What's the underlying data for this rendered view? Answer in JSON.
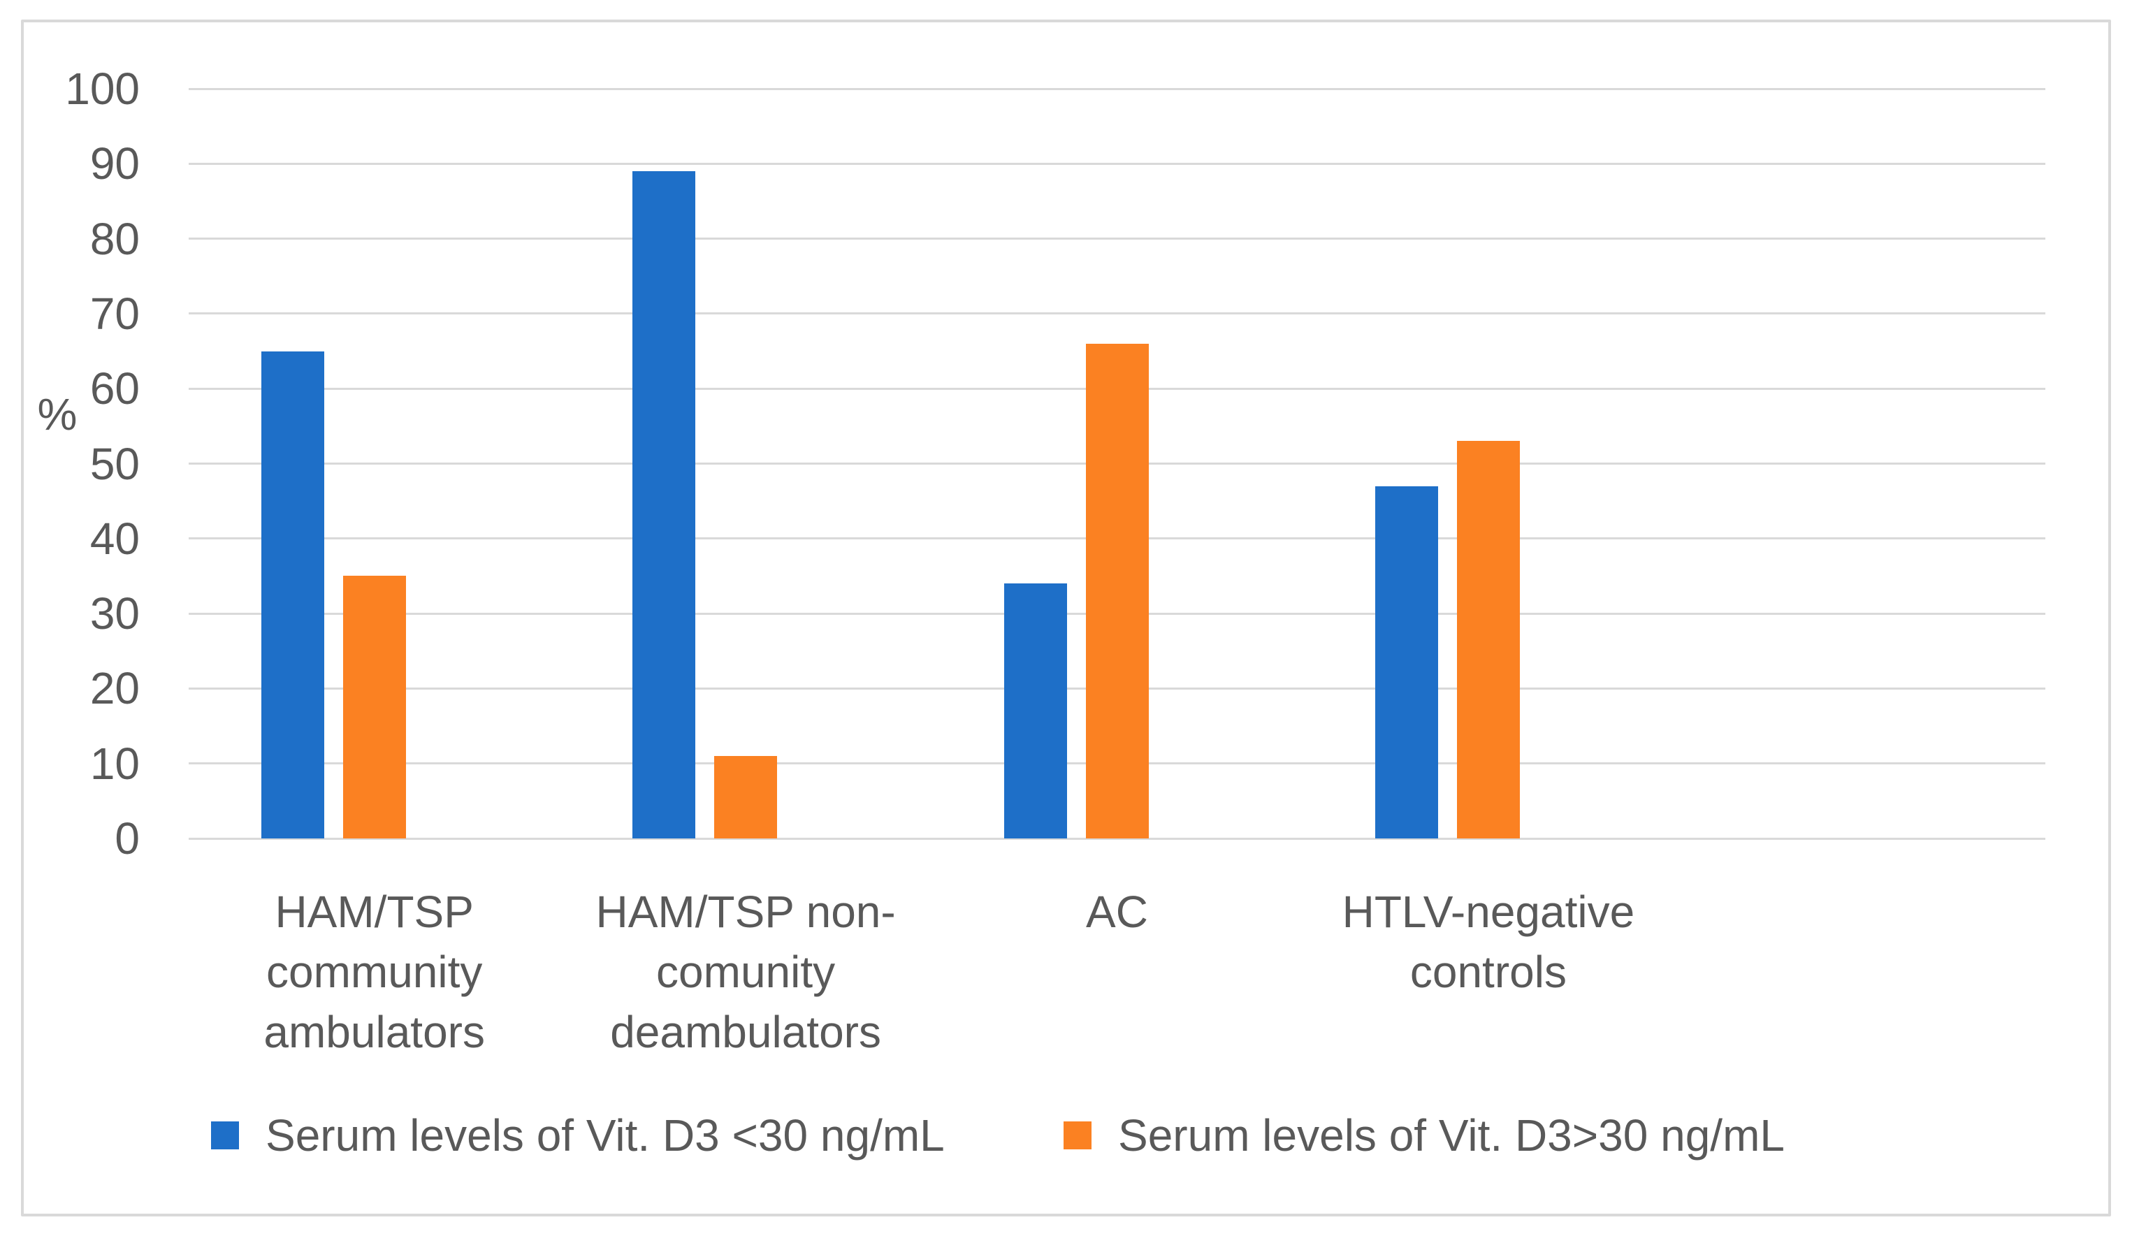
{
  "chart_data": {
    "type": "bar",
    "title": "",
    "ylabel": "%",
    "xlabel": "",
    "ylim": [
      0,
      100
    ],
    "yticks": [
      0,
      10,
      20,
      30,
      40,
      50,
      60,
      70,
      80,
      90,
      100
    ],
    "grid": true,
    "legend_position": "bottom",
    "categories": [
      {
        "label": "HAM/TSP community ambulators",
        "lines": [
          "HAM/TSP",
          "community",
          "ambulators"
        ]
      },
      {
        "label": "HAM/TSP non-comunity deambulators",
        "lines": [
          "HAM/TSP non-",
          "comunity",
          "deambulators"
        ]
      },
      {
        "label": "AC",
        "lines": [
          "AC"
        ]
      },
      {
        "label": "HTLV-negative controls",
        "lines": [
          "HTLV-negative",
          "controls"
        ]
      }
    ],
    "series": [
      {
        "name": "Serum levels of Vit. D3 <30 ng/mL",
        "color": "#1E6FC8",
        "values": [
          65,
          89,
          34,
          47
        ]
      },
      {
        "name": "Serum levels of Vit. D3>30 ng/mL",
        "color": "#FB8122",
        "values": [
          35,
          11,
          66,
          53
        ]
      }
    ],
    "colors": {
      "grid": "#D9D9D9",
      "frame": "#D9D9D9",
      "text": "#595959"
    }
  }
}
